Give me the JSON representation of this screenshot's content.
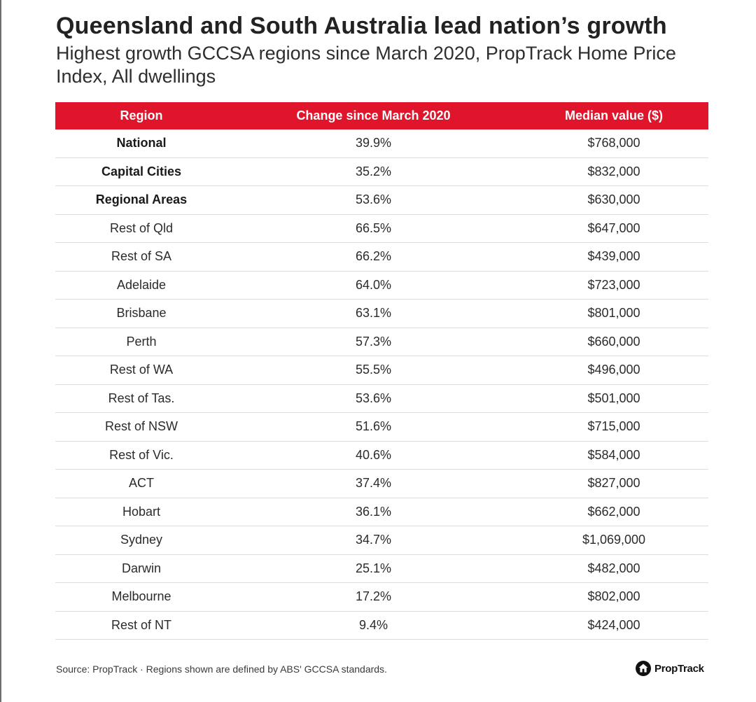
{
  "title": "Queensland and South Australia lead nation’s growth",
  "subtitle": "Highest growth GCCSA regions since March 2020, PropTrack Home Price Index, All dwellings",
  "source": "Source: PropTrack · Regions shown are defined by ABS' GCCSA standards.",
  "brand": {
    "name": "PropTrack",
    "icon": "proptrack-logo-icon"
  },
  "colors": {
    "header_bg": "#e0142a",
    "header_text": "#ffffff"
  },
  "chart_data": {
    "type": "table",
    "columns": [
      "Region",
      "Change since March 2020",
      "Median value ($)"
    ],
    "rows": [
      {
        "region": "National",
        "change": "39.9%",
        "median": "$768,000",
        "bold": true
      },
      {
        "region": "Capital Cities",
        "change": "35.2%",
        "median": "$832,000",
        "bold": true
      },
      {
        "region": "Regional Areas",
        "change": "53.6%",
        "median": "$630,000",
        "bold": true
      },
      {
        "region": "Rest of Qld",
        "change": "66.5%",
        "median": "$647,000",
        "bold": false
      },
      {
        "region": "Rest of SA",
        "change": "66.2%",
        "median": "$439,000",
        "bold": false
      },
      {
        "region": "Adelaide",
        "change": "64.0%",
        "median": "$723,000",
        "bold": false
      },
      {
        "region": "Brisbane",
        "change": "63.1%",
        "median": "$801,000",
        "bold": false
      },
      {
        "region": "Perth",
        "change": "57.3%",
        "median": "$660,000",
        "bold": false
      },
      {
        "region": "Rest of WA",
        "change": "55.5%",
        "median": "$496,000",
        "bold": false
      },
      {
        "region": "Rest of Tas.",
        "change": "53.6%",
        "median": "$501,000",
        "bold": false
      },
      {
        "region": "Rest of NSW",
        "change": "51.6%",
        "median": "$715,000",
        "bold": false
      },
      {
        "region": "Rest of Vic.",
        "change": "40.6%",
        "median": "$584,000",
        "bold": false
      },
      {
        "region": "ACT",
        "change": "37.4%",
        "median": "$827,000",
        "bold": false
      },
      {
        "region": "Hobart",
        "change": "36.1%",
        "median": "$662,000",
        "bold": false
      },
      {
        "region": "Sydney",
        "change": "34.7%",
        "median": "$1,069,000",
        "bold": false
      },
      {
        "region": "Darwin",
        "change": "25.1%",
        "median": "$482,000",
        "bold": false
      },
      {
        "region": "Melbourne",
        "change": "17.2%",
        "median": "$802,000",
        "bold": false
      },
      {
        "region": "Rest of NT",
        "change": "9.4%",
        "median": "$424,000",
        "bold": false
      }
    ]
  }
}
